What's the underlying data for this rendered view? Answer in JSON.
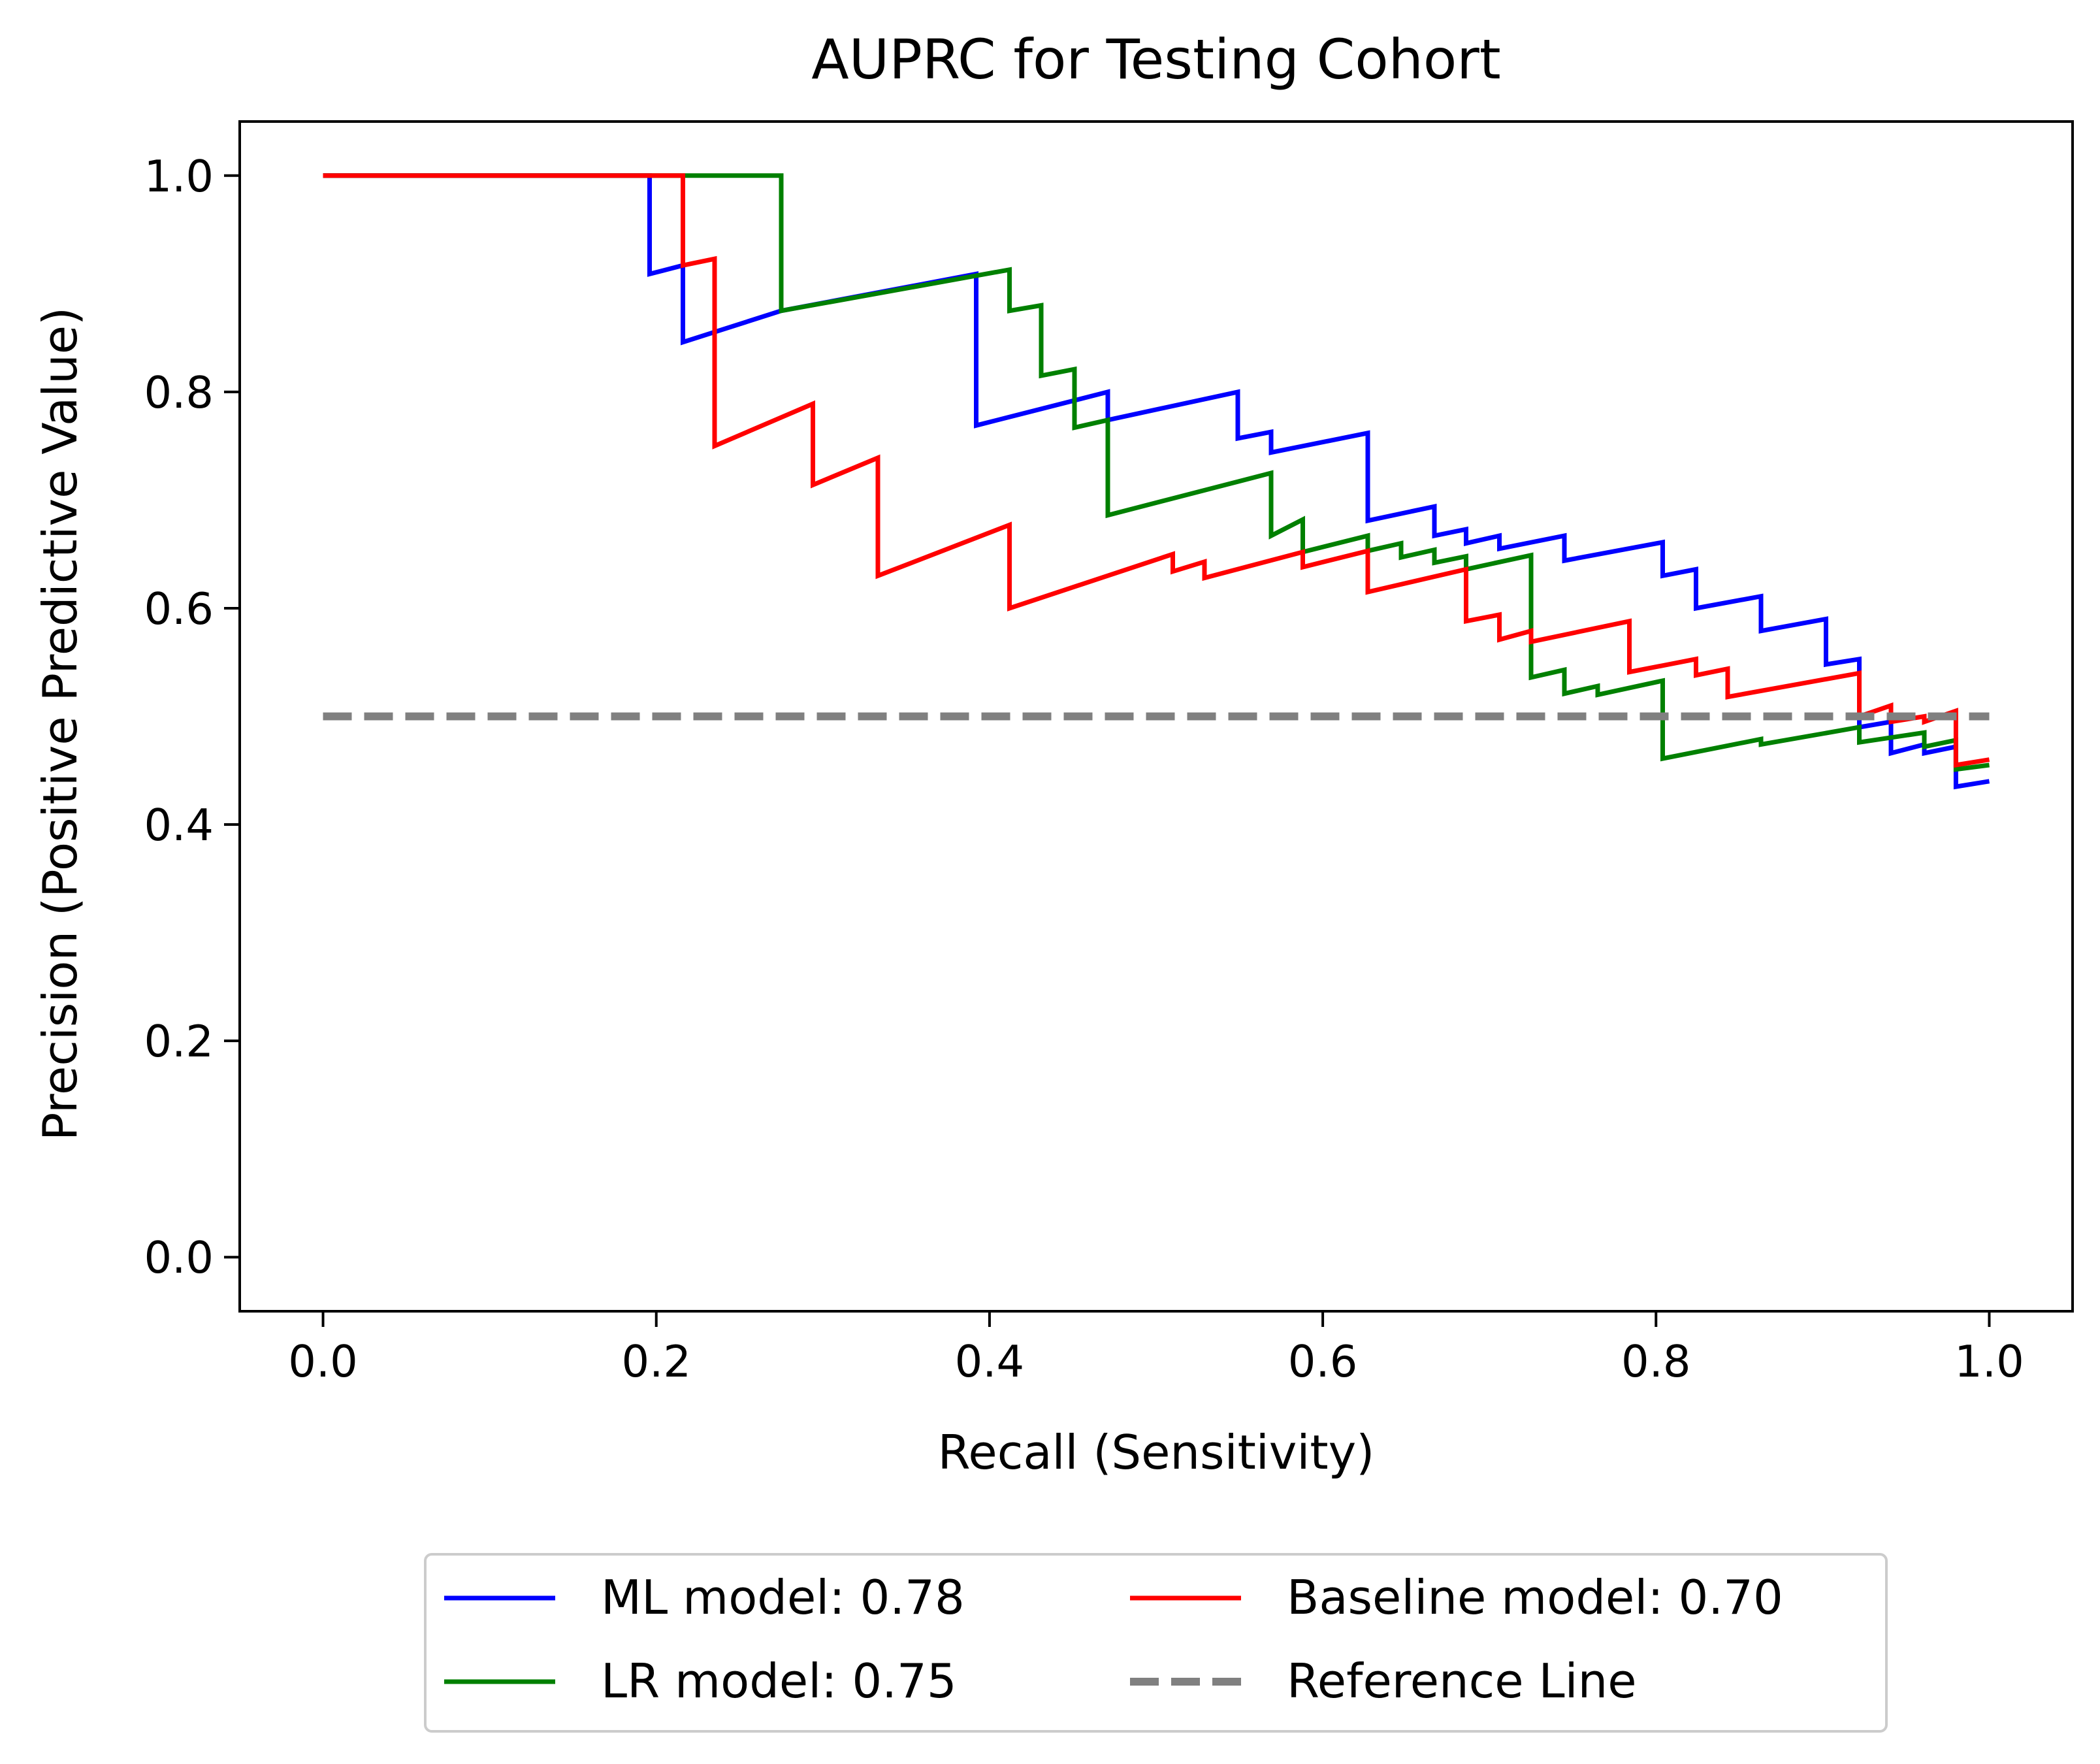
{
  "chart_data": {
    "type": "line",
    "title": "AUPRC for Testing Cohort",
    "xlabel": "Recall (Sensitivity)",
    "ylabel": "Precision (Positive Predictive Value)",
    "xlim": [
      -0.05,
      1.05
    ],
    "ylim": [
      -0.05,
      1.05
    ],
    "xticks": [
      0.0,
      0.2,
      0.4,
      0.6,
      0.8,
      1.0
    ],
    "xtick_labels": [
      "0.0",
      "0.2",
      "0.4",
      "0.6",
      "0.8",
      "1.0"
    ],
    "yticks": [
      0.0,
      0.2,
      0.4,
      0.6,
      0.8,
      1.0
    ],
    "ytick_labels": [
      "0.0",
      "0.2",
      "0.4",
      "0.6",
      "0.8",
      "1.0"
    ],
    "grid": false,
    "legend_placement": "bottom-center",
    "series": [
      {
        "name": "ML model: 0.78",
        "color": "#0000ff",
        "dashed": false,
        "points": [
          [
            0,
            1.0
          ],
          [
            0.196,
            1.0
          ],
          [
            0.196,
            0.909
          ],
          [
            0.216,
            0.917
          ],
          [
            0.216,
            0.846
          ],
          [
            0.275,
            0.875
          ],
          [
            0.392,
            0.909
          ],
          [
            0.392,
            0.769
          ],
          [
            0.471,
            0.8
          ],
          [
            0.471,
            0.774
          ],
          [
            0.549,
            0.8
          ],
          [
            0.549,
            0.757
          ],
          [
            0.569,
            0.763
          ],
          [
            0.569,
            0.744
          ],
          [
            0.627,
            0.762
          ],
          [
            0.627,
            0.681
          ],
          [
            0.667,
            0.694
          ],
          [
            0.667,
            0.667
          ],
          [
            0.686,
            0.673
          ],
          [
            0.686,
            0.66
          ],
          [
            0.706,
            0.667
          ],
          [
            0.706,
            0.655
          ],
          [
            0.745,
            0.667
          ],
          [
            0.745,
            0.644
          ],
          [
            0.804,
            0.661
          ],
          [
            0.804,
            0.63
          ],
          [
            0.824,
            0.636
          ],
          [
            0.824,
            0.6
          ],
          [
            0.863,
            0.611
          ],
          [
            0.863,
            0.579
          ],
          [
            0.902,
            0.59
          ],
          [
            0.902,
            0.548
          ],
          [
            0.922,
            0.553
          ],
          [
            0.922,
            0.49
          ],
          [
            0.941,
            0.495
          ],
          [
            0.941,
            0.466
          ],
          [
            0.961,
            0.474
          ],
          [
            0.961,
            0.466
          ],
          [
            0.98,
            0.472
          ],
          [
            0.98,
            0.435
          ],
          [
            1.0,
            0.44
          ]
        ]
      },
      {
        "name": "LR model: 0.75",
        "color": "#008000",
        "dashed": false,
        "points": [
          [
            0,
            1.0
          ],
          [
            0.275,
            1.0
          ],
          [
            0.275,
            0.875
          ],
          [
            0.412,
            0.913
          ],
          [
            0.412,
            0.875
          ],
          [
            0.431,
            0.88
          ],
          [
            0.431,
            0.815
          ],
          [
            0.451,
            0.821
          ],
          [
            0.451,
            0.767
          ],
          [
            0.471,
            0.774
          ],
          [
            0.471,
            0.686
          ],
          [
            0.569,
            0.725
          ],
          [
            0.569,
            0.667
          ],
          [
            0.588,
            0.682
          ],
          [
            0.588,
            0.652
          ],
          [
            0.627,
            0.667
          ],
          [
            0.627,
            0.653
          ],
          [
            0.647,
            0.66
          ],
          [
            0.647,
            0.647
          ],
          [
            0.667,
            0.654
          ],
          [
            0.667,
            0.642
          ],
          [
            0.686,
            0.648
          ],
          [
            0.686,
            0.636
          ],
          [
            0.725,
            0.649
          ],
          [
            0.725,
            0.536
          ],
          [
            0.745,
            0.543
          ],
          [
            0.745,
            0.521
          ],
          [
            0.765,
            0.528
          ],
          [
            0.765,
            0.52
          ],
          [
            0.804,
            0.533
          ],
          [
            0.804,
            0.461
          ],
          [
            0.863,
            0.479
          ],
          [
            0.863,
            0.474
          ],
          [
            0.922,
            0.49
          ],
          [
            0.922,
            0.476
          ],
          [
            0.961,
            0.485
          ],
          [
            0.961,
            0.472
          ],
          [
            0.98,
            0.478
          ],
          [
            0.98,
            0.451
          ],
          [
            1.0,
            0.455
          ]
        ]
      },
      {
        "name": "Baseline model: 0.70",
        "color": "#ff0000",
        "dashed": false,
        "points": [
          [
            0,
            1.0
          ],
          [
            0.216,
            1.0
          ],
          [
            0.216,
            0.917
          ],
          [
            0.235,
            0.923
          ],
          [
            0.235,
            0.75
          ],
          [
            0.294,
            0.789
          ],
          [
            0.294,
            0.714
          ],
          [
            0.333,
            0.739
          ],
          [
            0.333,
            0.63
          ],
          [
            0.412,
            0.677
          ],
          [
            0.412,
            0.6
          ],
          [
            0.51,
            0.65
          ],
          [
            0.51,
            0.634
          ],
          [
            0.529,
            0.643
          ],
          [
            0.529,
            0.628
          ],
          [
            0.588,
            0.652
          ],
          [
            0.588,
            0.638
          ],
          [
            0.627,
            0.653
          ],
          [
            0.627,
            0.615
          ],
          [
            0.686,
            0.636
          ],
          [
            0.686,
            0.588
          ],
          [
            0.706,
            0.594
          ],
          [
            0.706,
            0.571
          ],
          [
            0.725,
            0.579
          ],
          [
            0.725,
            0.569
          ],
          [
            0.784,
            0.588
          ],
          [
            0.784,
            0.541
          ],
          [
            0.824,
            0.553
          ],
          [
            0.824,
            0.538
          ],
          [
            0.843,
            0.544
          ],
          [
            0.843,
            0.518
          ],
          [
            0.922,
            0.54
          ],
          [
            0.922,
            0.5
          ],
          [
            0.941,
            0.51
          ],
          [
            0.941,
            0.495
          ],
          [
            0.961,
            0.5
          ],
          [
            0.961,
            0.495
          ],
          [
            0.98,
            0.505
          ],
          [
            0.98,
            0.455
          ],
          [
            1.0,
            0.46
          ]
        ]
      },
      {
        "name": "Reference Line",
        "color": "#808080",
        "dashed": true,
        "points": [
          [
            0,
            0.5
          ],
          [
            1.0,
            0.5
          ]
        ]
      }
    ]
  }
}
